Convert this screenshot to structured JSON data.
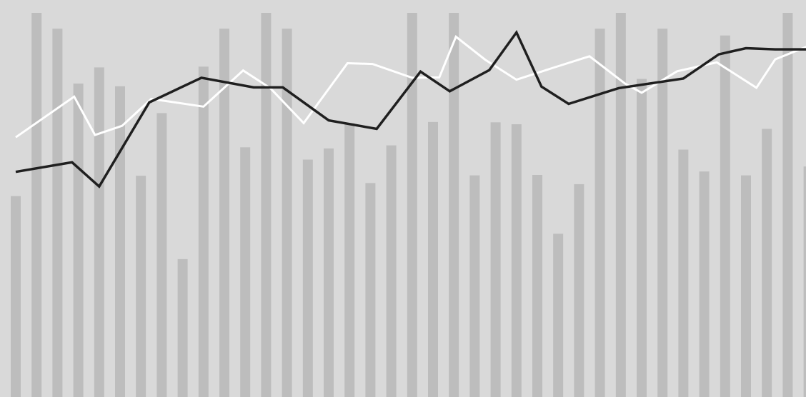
{
  "chart_data": {
    "type": "bar",
    "title": "",
    "xlabel": "",
    "ylabel": "",
    "ylim": [
      0,
      100
    ],
    "grid": false,
    "legend": "none",
    "colors": {
      "background": "#d9d9d9",
      "bars": "#bdbdbd",
      "line_dark": "#1f1f1f",
      "line_light": "#ffffff"
    },
    "bars": {
      "values": [
        52.3,
        100.0,
        95.9,
        81.6,
        85.8,
        80.9,
        57.6,
        73.9,
        35.9,
        86.0,
        95.9,
        65.0,
        100.0,
        95.9,
        61.8,
        64.7,
        71.3,
        55.7,
        65.5,
        100.0,
        71.6,
        100.0,
        57.7,
        71.5,
        71.0,
        57.8,
        42.5,
        55.4,
        95.9,
        100.0,
        82.8,
        95.9,
        64.4,
        58.7,
        94.1,
        57.7,
        69.8,
        100.0,
        60.0
      ]
    },
    "series": [
      {
        "style": "light",
        "x": [
          0,
          2.8,
          3.8,
          5.1,
          6.5,
          9.0,
          10.9,
          12.2,
          13.8,
          15.9,
          17.1,
          19.0,
          20.3,
          21.1,
          22.5,
          24.0,
          25.7,
          27.5,
          29.2,
          30.0,
          31.7,
          33.6,
          35.5,
          36.4,
          38.0
        ],
        "y": [
          67.6,
          78.2,
          68.2,
          70.6,
          77.6,
          75.6,
          85.0,
          80.4,
          71.3,
          86.9,
          86.7,
          83.1,
          83.2,
          93.8,
          87.8,
          82.6,
          85.6,
          88.7,
          81.6,
          79.2,
          84.8,
          87.1,
          80.5,
          87.9,
          91.4
        ]
      },
      {
        "style": "dark",
        "x": [
          0,
          2.7,
          4.0,
          6.4,
          8.9,
          11.4,
          12.8,
          15.0,
          17.3,
          19.4,
          20.8,
          22.7,
          24.0,
          25.2,
          26.5,
          28.9,
          32.0,
          33.7,
          35.0,
          36.4,
          38.0
        ],
        "y": [
          58.6,
          61.1,
          54.8,
          76.7,
          83.1,
          80.6,
          80.6,
          72.0,
          69.8,
          84.7,
          79.6,
          85.1,
          94.9,
          80.8,
          76.3,
          80.4,
          82.9,
          89.2,
          90.8,
          90.5,
          90.5
        ]
      }
    ]
  }
}
